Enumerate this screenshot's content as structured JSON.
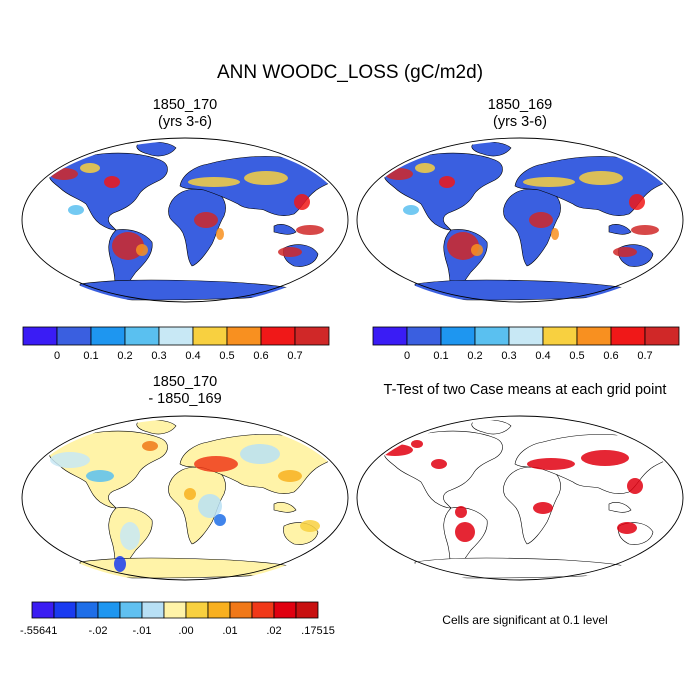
{
  "title": "ANN WOODC_LOSS (gC/m2d)",
  "panels": [
    {
      "id": "p1",
      "title_line1": "1850_170",
      "title_line2": "(yrs 3-6)",
      "style": "mean"
    },
    {
      "id": "p2",
      "title_line1": "1850_169",
      "title_line2": "(yrs 3-6)",
      "style": "mean"
    },
    {
      "id": "p3",
      "title_line1": "1850_170",
      "title_line2": "- 1850_169",
      "style": "diff"
    },
    {
      "id": "p4",
      "title_line1": "T-Test of two Case means at each grid point",
      "title_line2": "",
      "style": "ttest"
    }
  ],
  "colorbar_mean": {
    "colors": [
      "#3a1cf5",
      "#3a5fe0",
      "#1e96f0",
      "#5ac0f0",
      "#c8e8f5",
      "#f8d040",
      "#f89020",
      "#f01818",
      "#d02828"
    ],
    "labels": [
      "0",
      "0.1",
      "0.2",
      "0.3",
      "0.4",
      "0.5",
      "0.6",
      "0.7"
    ]
  },
  "colorbar_diff": {
    "colors": [
      "#3b1df2",
      "#1a3bf0",
      "#1e6ee8",
      "#1e96f0",
      "#60c0f0",
      "#b8e0f5",
      "#fff3a8",
      "#f8d040",
      "#f8b020",
      "#f07818",
      "#f03818",
      "#e00010",
      "#c81010"
    ],
    "labels": [
      "-.55641",
      "-.02",
      "-.01",
      ".00",
      ".01",
      ".02",
      ".17515"
    ]
  },
  "ttest_note": "Cells are significant at 0.1 level"
}
